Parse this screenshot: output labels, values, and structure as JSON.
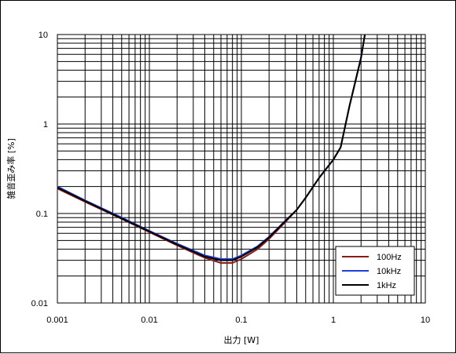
{
  "chart_data": {
    "type": "line",
    "title": "",
    "xlabel": "出力 [W]",
    "ylabel": "雑音歪み率 [%]",
    "xscale": "log",
    "yscale": "log",
    "xlim": [
      0.001,
      10
    ],
    "ylim": [
      0.01,
      10
    ],
    "x_tick_labels": [
      "0.001",
      "0.01",
      "0.1",
      "1",
      "10"
    ],
    "y_tick_labels": [
      "0.01",
      "0.1",
      "1",
      "10"
    ],
    "grid": true,
    "legend_position": "bottom-right",
    "series": [
      {
        "name": "100Hz",
        "color": "#8b1a1a",
        "x": [
          0.001,
          0.002,
          0.005,
          0.01,
          0.02,
          0.04,
          0.06,
          0.08,
          0.1,
          0.15,
          0.2,
          0.3,
          0.4,
          0.5,
          0.7,
          1.0,
          1.2,
          1.5,
          2.0,
          2.2
        ],
        "y": [
          0.19,
          0.135,
          0.087,
          0.062,
          0.044,
          0.032,
          0.028,
          0.028,
          0.031,
          0.04,
          0.052,
          0.08,
          0.11,
          0.15,
          0.25,
          0.4,
          0.55,
          1.6,
          5.5,
          10
        ]
      },
      {
        "name": "10kHz",
        "color": "#1f3fd9",
        "x": [
          0.001,
          0.002,
          0.005,
          0.01,
          0.02,
          0.04,
          0.06,
          0.08,
          0.1,
          0.15,
          0.2,
          0.3,
          0.4,
          0.5,
          0.7,
          1.0,
          1.2,
          1.5,
          2.0,
          2.2
        ],
        "y": [
          0.2,
          0.14,
          0.09,
          0.064,
          0.046,
          0.034,
          0.031,
          0.031,
          0.034,
          0.043,
          0.055,
          0.083,
          0.11,
          0.15,
          0.25,
          0.4,
          0.55,
          1.6,
          5.5,
          10
        ]
      },
      {
        "name": "1kHz",
        "color": "#000000",
        "x": [
          0.001,
          0.002,
          0.005,
          0.01,
          0.02,
          0.04,
          0.06,
          0.08,
          0.1,
          0.15,
          0.2,
          0.3,
          0.4,
          0.5,
          0.7,
          1.0,
          1.2,
          1.5,
          2.0,
          2.2
        ],
        "y": [
          0.195,
          0.138,
          0.088,
          0.063,
          0.045,
          0.033,
          0.03,
          0.03,
          0.033,
          0.042,
          0.054,
          0.082,
          0.11,
          0.15,
          0.25,
          0.4,
          0.55,
          1.6,
          5.5,
          10
        ]
      }
    ]
  }
}
